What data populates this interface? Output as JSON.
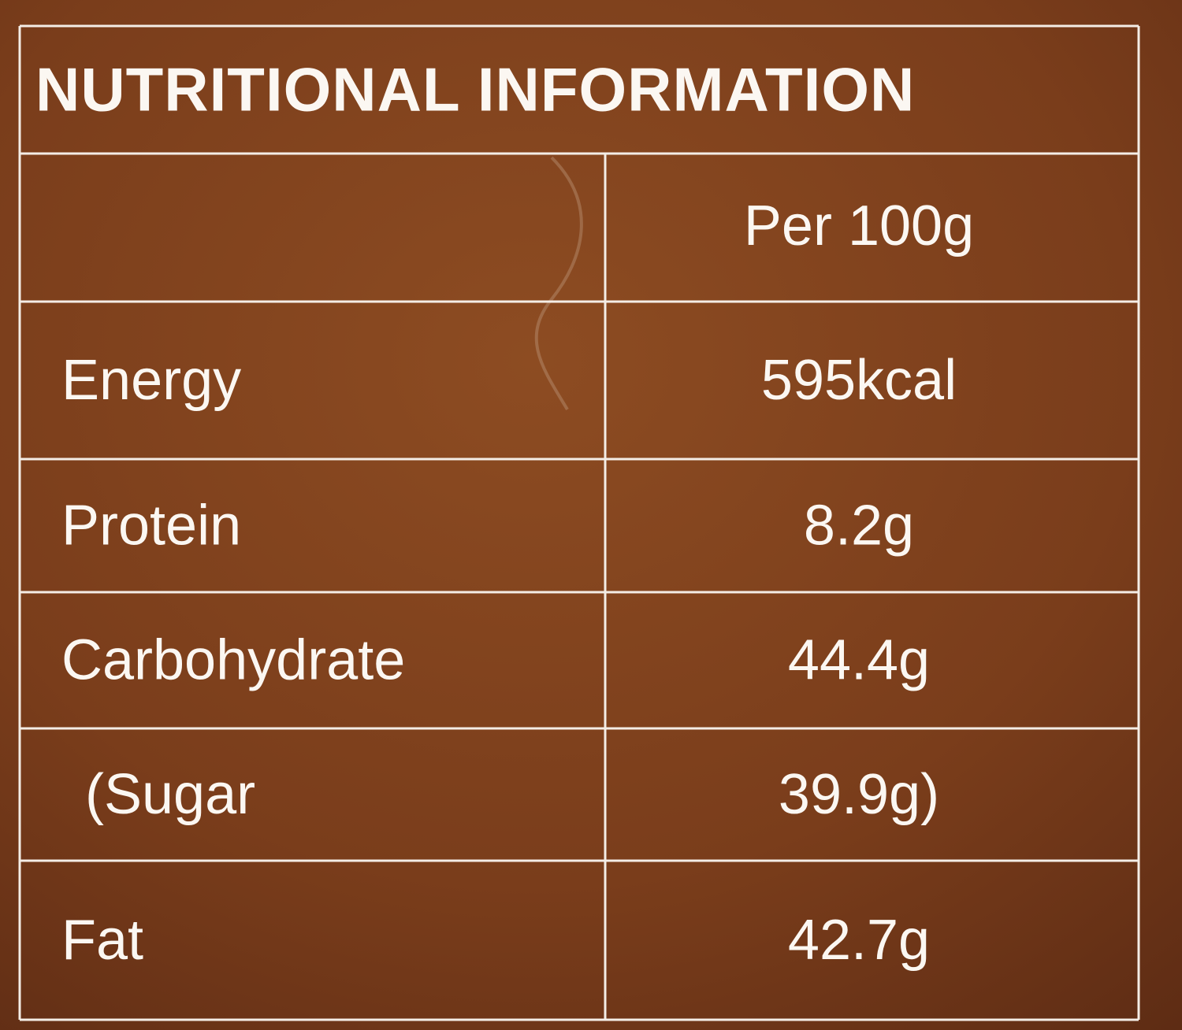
{
  "table": {
    "title": "NUTRITIONAL INFORMATION",
    "header": "Per 100g",
    "rows": [
      [
        "Energy",
        "595kcal"
      ],
      [
        "Protein",
        "8.2g"
      ],
      [
        "Carbohydrate",
        "44.4g"
      ],
      [
        "(Sugar",
        "39.9g)"
      ],
      [
        "Fat",
        "42.7g"
      ]
    ]
  }
}
